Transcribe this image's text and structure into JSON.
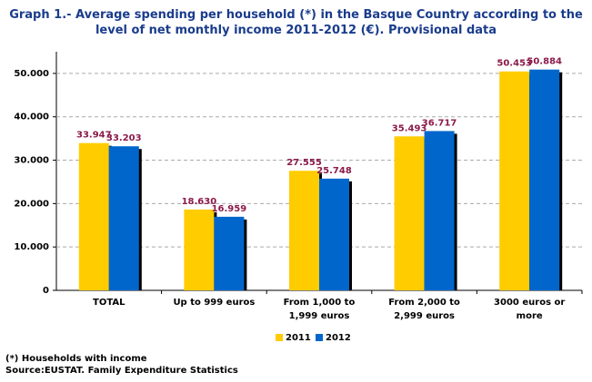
{
  "chart_data": {
    "type": "bar",
    "title": "Graph 1.- Average spending per household (*) in the Basque Country according to the level of net monthly income 2011-2012 (€). Provisional data",
    "categories": [
      "TOTAL",
      "Up to 999 euros",
      "From 1,000 to 1,999 euros",
      "From 2,000 to 2,999 euros",
      "3000 euros or more"
    ],
    "series": [
      {
        "name": "2011",
        "color": "#ffcc00",
        "values": [
          33947,
          18630,
          27555,
          35493,
          50453
        ],
        "value_labels": [
          "33.947",
          "18.630",
          "27.555",
          "35.493",
          "50.453"
        ]
      },
      {
        "name": "2012",
        "color": "#0066cc",
        "values": [
          33203,
          16959,
          25748,
          36717,
          50884
        ],
        "value_labels": [
          "33.203",
          "16.959",
          "25.748",
          "36.717",
          "50.884"
        ]
      }
    ],
    "ylim": [
      0,
      55000
    ],
    "yticks": [
      0,
      {
        "value": 10000,
        "label": "10.000"
      },
      {
        "value": 20000,
        "label": "20.000"
      },
      {
        "value": 30000,
        "label": "30.000"
      },
      {
        "value": 40000,
        "label": "40.000"
      },
      {
        "value": 50000,
        "label": "50.000"
      }
    ],
    "grid": true,
    "legend": "bottom",
    "footnote": "(*) Households with income",
    "source": "Source:EUSTAT. Family Expenditure Statistics"
  }
}
